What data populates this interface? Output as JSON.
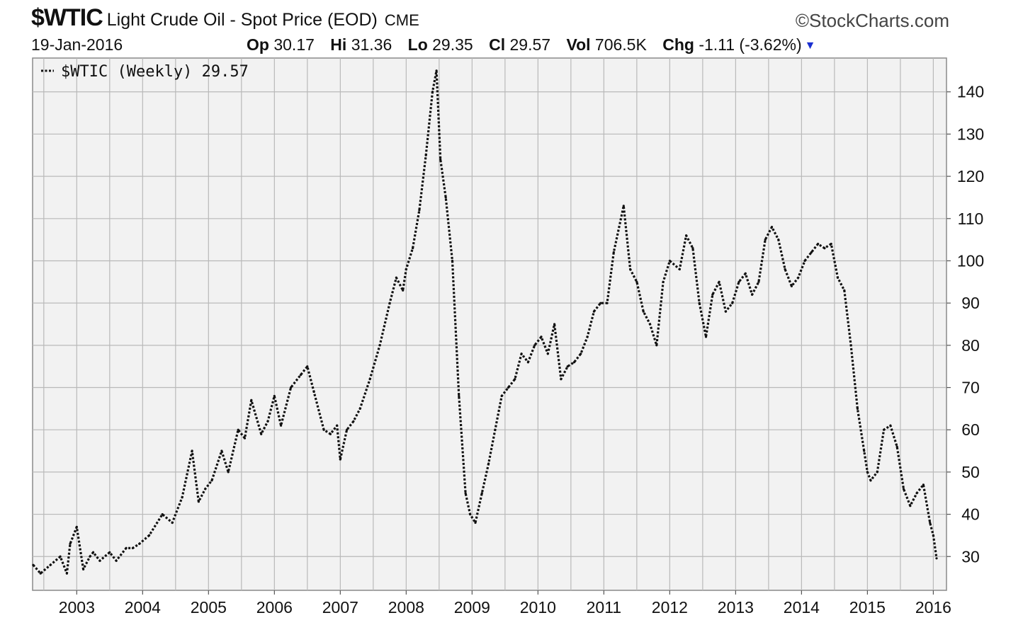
{
  "header": {
    "symbol": "$WTIC",
    "title": "Light Crude Oil - Spot Price (EOD)",
    "exchange": "CME",
    "brand": "©StockCharts.com",
    "date": "19-Jan-2016",
    "stats": [
      {
        "label": "Op",
        "value": "30.17"
      },
      {
        "label": "Hi",
        "value": "31.36"
      },
      {
        "label": "Lo",
        "value": "29.35"
      },
      {
        "label": "Cl",
        "value": "29.57"
      },
      {
        "label": "Vol",
        "value": "706.5K"
      },
      {
        "label": "Chg",
        "value": "-1.11 (-3.62%)"
      }
    ]
  },
  "legend": {
    "text": "$WTIC (Weekly) 29.57"
  },
  "chart_data": {
    "type": "line",
    "title": "Light Crude Oil - Spot Price (EOD)",
    "xlabel": "",
    "ylabel": "",
    "xlim": [
      2002.33,
      2016.2
    ],
    "ylim": [
      22,
      148
    ],
    "grid": true,
    "legend_position": "top-left",
    "line_style": "dotted",
    "line_color": "#111111",
    "plot_background": "#f2f2f2",
    "grid_color": "#b9b9b9",
    "x_ticks": [
      "2003",
      "2004",
      "2005",
      "2006",
      "2007",
      "2008",
      "2009",
      "2010",
      "2011",
      "2012",
      "2013",
      "2014",
      "2015",
      "2016"
    ],
    "y_ticks": [
      30,
      40,
      50,
      60,
      70,
      80,
      90,
      100,
      110,
      120,
      130,
      140
    ],
    "series": [
      {
        "name": "$WTIC (Weekly)",
        "x": [
          2002.34,
          2002.45,
          2002.6,
          2002.75,
          2002.85,
          2002.9,
          2003.0,
          2003.1,
          2003.2,
          2003.25,
          2003.35,
          2003.5,
          2003.6,
          2003.75,
          2003.85,
          2003.95,
          2004.1,
          2004.3,
          2004.45,
          2004.6,
          2004.75,
          2004.85,
          2004.95,
          2005.05,
          2005.2,
          2005.3,
          2005.45,
          2005.55,
          2005.65,
          2005.8,
          2005.9,
          2006.0,
          2006.1,
          2006.25,
          2006.4,
          2006.5,
          2006.6,
          2006.75,
          2006.85,
          2006.95,
          2007.0,
          2007.1,
          2007.2,
          2007.3,
          2007.45,
          2007.6,
          2007.75,
          2007.85,
          2007.95,
          2008.0,
          2008.1,
          2008.2,
          2008.3,
          2008.4,
          2008.46,
          2008.52,
          2008.6,
          2008.7,
          2008.8,
          2008.9,
          2008.97,
          2009.05,
          2009.15,
          2009.25,
          2009.35,
          2009.45,
          2009.55,
          2009.65,
          2009.75,
          2009.85,
          2009.95,
          2010.05,
          2010.15,
          2010.25,
          2010.35,
          2010.45,
          2010.55,
          2010.65,
          2010.75,
          2010.85,
          2010.95,
          2011.05,
          2011.15,
          2011.3,
          2011.4,
          2011.5,
          2011.6,
          2011.7,
          2011.8,
          2011.9,
          2012.0,
          2012.15,
          2012.25,
          2012.35,
          2012.45,
          2012.55,
          2012.65,
          2012.75,
          2012.85,
          2012.95,
          2013.05,
          2013.15,
          2013.25,
          2013.35,
          2013.45,
          2013.55,
          2013.65,
          2013.75,
          2013.85,
          2013.95,
          2014.05,
          2014.15,
          2014.25,
          2014.35,
          2014.45,
          2014.55,
          2014.65,
          2014.75,
          2014.85,
          2014.95,
          2015.0,
          2015.05,
          2015.15,
          2015.25,
          2015.35,
          2015.45,
          2015.55,
          2015.65,
          2015.75,
          2015.85,
          2015.95,
          2016.0,
          2016.05
        ],
        "y": [
          28,
          26,
          28,
          30,
          26,
          33,
          37,
          27,
          30,
          31,
          29,
          31,
          29,
          32,
          32,
          33,
          35,
          40,
          38,
          44,
          55,
          43,
          46,
          48,
          55,
          50,
          60,
          58,
          67,
          59,
          62,
          68,
          61,
          70,
          73,
          75,
          69,
          60,
          59,
          61,
          53,
          60,
          62,
          65,
          72,
          80,
          90,
          96,
          93,
          98,
          103,
          112,
          125,
          140,
          145,
          124,
          115,
          100,
          68,
          45,
          40,
          38,
          45,
          52,
          60,
          68,
          70,
          72,
          78,
          76,
          80,
          82,
          78,
          85,
          72,
          75,
          76,
          78,
          82,
          88,
          90,
          90,
          102,
          113,
          98,
          95,
          88,
          85,
          80,
          95,
          100,
          98,
          106,
          103,
          90,
          82,
          92,
          95,
          88,
          90,
          95,
          97,
          92,
          95,
          105,
          108,
          105,
          98,
          94,
          96,
          100,
          102,
          104,
          103,
          104,
          96,
          93,
          80,
          65,
          55,
          50,
          48,
          50,
          60,
          61,
          56,
          46,
          42,
          45,
          47,
          38,
          35,
          29.57
        ]
      }
    ]
  }
}
